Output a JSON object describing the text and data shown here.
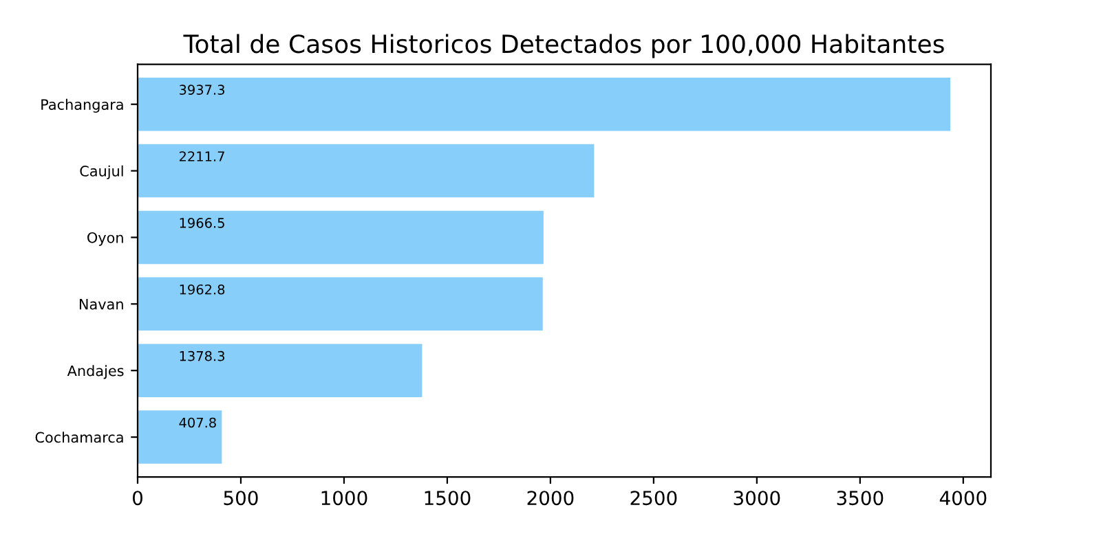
{
  "chart_data": {
    "type": "bar",
    "orientation": "horizontal",
    "title": "Total de Casos Historicos Detectados por 100,000 Habitantes",
    "categories": [
      "Pachangara",
      "Caujul",
      "Oyon",
      "Navan",
      "Andajes",
      "Cochamarca"
    ],
    "values": [
      3937.3,
      2211.7,
      1966.5,
      1962.8,
      1378.3,
      407.8
    ],
    "color": "#87cefa",
    "data_labels": true,
    "xlim": [
      0,
      4134
    ],
    "xticks": [
      0,
      500,
      1000,
      1500,
      2000,
      2500,
      3000,
      3500,
      4000
    ],
    "grid": false
  }
}
